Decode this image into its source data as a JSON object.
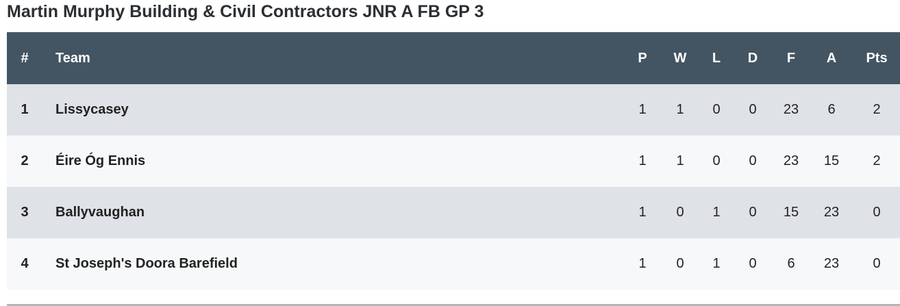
{
  "header": {
    "title": "Martin Murphy Building & Civil Contractors JNR A FB GP 3"
  },
  "table": {
    "columns": [
      "#",
      "Team",
      "P",
      "W",
      "L",
      "D",
      "F",
      "A",
      "Pts"
    ],
    "rows": [
      [
        1,
        "Lissycasey",
        1,
        1,
        0,
        0,
        23,
        6,
        2
      ],
      [
        2,
        "Éire Óg Ennis",
        1,
        1,
        0,
        0,
        23,
        15,
        2
      ],
      [
        3,
        "Ballyvaughan",
        1,
        0,
        1,
        0,
        15,
        23,
        0
      ],
      [
        4,
        "St Joseph's Doora Barefield",
        1,
        0,
        1,
        0,
        6,
        23,
        0
      ]
    ]
  }
}
